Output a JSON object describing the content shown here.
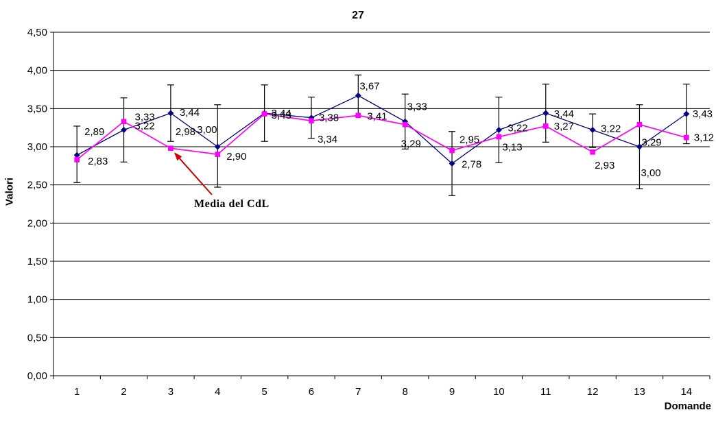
{
  "title": "27",
  "colors": {
    "series1": "#000080",
    "series2": "#ff00ff",
    "axis": "#000000",
    "grid": "#000000",
    "label_text": "#000000",
    "arrow": "#cc0000",
    "background": "#ffffff"
  },
  "axes": {
    "y_label": "Valori",
    "x_label": "Domande",
    "y_tick_labels": [
      "0,00",
      "0,50",
      "1,00",
      "1,50",
      "2,00",
      "2,50",
      "3,00",
      "3,50",
      "4,00",
      "4,50"
    ],
    "y_min": 0,
    "y_max": 4.5,
    "y_step": 0.5,
    "x_tick_labels": [
      "1",
      "2",
      "3",
      "4",
      "5",
      "6",
      "7",
      "8",
      "9",
      "10",
      "11",
      "12",
      "13",
      "14"
    ]
  },
  "annotation": {
    "text": "Media del CdL",
    "points_to_category": "3",
    "points_to_series": "Media del CdL"
  },
  "chart_data": {
    "type": "line",
    "title": "27",
    "xlabel": "Domande",
    "ylabel": "Valori",
    "ylim": [
      0,
      4.5
    ],
    "grid": "horizontal",
    "legend": "none",
    "categories": [
      "1",
      "2",
      "3",
      "4",
      "5",
      "6",
      "7",
      "8",
      "9",
      "10",
      "11",
      "12",
      "13",
      "14"
    ],
    "series": [
      {
        "name": "",
        "marker": "diamond",
        "color": "#000080",
        "values": [
          2.89,
          3.22,
          3.44,
          3.0,
          3.44,
          3.38,
          3.67,
          3.33,
          2.78,
          3.22,
          3.44,
          3.22,
          3.0,
          3.43
        ],
        "labels": [
          "2,89",
          "3,22",
          "3,44",
          "3,00",
          "3,44",
          "3,38",
          "3,67",
          "3,33",
          "2,78",
          "3,22",
          "3,44",
          "3,22",
          "3,00",
          "3,43"
        ],
        "error_bar_low": [
          2.53,
          2.8,
          3.07,
          2.47,
          3.07,
          3.11,
          3.4,
          2.97,
          2.36,
          2.79,
          3.06,
          2.99,
          2.45,
          3.04
        ],
        "error_bar_high": [
          3.27,
          3.64,
          3.81,
          3.55,
          3.81,
          3.65,
          3.94,
          3.69,
          3.2,
          3.65,
          3.82,
          3.43,
          3.55,
          3.82
        ]
      },
      {
        "name": "Media del CdL",
        "marker": "square",
        "color": "#ff00ff",
        "values": [
          2.83,
          3.33,
          2.98,
          2.9,
          3.43,
          3.34,
          3.41,
          3.29,
          2.95,
          3.13,
          3.27,
          2.93,
          3.29,
          3.12
        ],
        "labels": [
          "2,83",
          "3,33",
          "2,98",
          "2,90",
          "3,43",
          "3,34",
          "3,41",
          "3,29",
          "2,95",
          "3,13",
          "3,27",
          "2,93",
          "3,29",
          "3,12"
        ]
      }
    ]
  }
}
